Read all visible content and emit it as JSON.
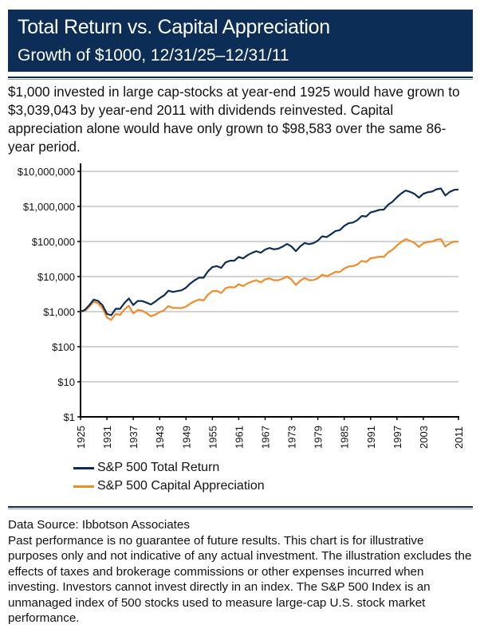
{
  "header": {
    "title": "Total Return vs. Capital Appreciation",
    "subtitle": "Growth of $1000, 12/31/25–12/31/11"
  },
  "intro": "$1,000 invested in large cap-stocks at year-end 1925 would have grown to $3,039,043 by year-end 2011 with dividends reinvested. Capital appreciation alone would have only grown to $98,583 over the same 86-year period.",
  "colors": {
    "header": "#0c2d55",
    "total_return": "#0c2d55",
    "capital_appreciation": "#f28c28",
    "grid": "#c4c4c4"
  },
  "chart_data": {
    "type": "line",
    "y_scale": "log",
    "ylim": [
      1,
      10000000
    ],
    "xlim": [
      1925,
      2011
    ],
    "grid": "horizontal",
    "legend_position": "bottom-left",
    "y_ticks": [
      1,
      10,
      100,
      1000,
      10000,
      100000,
      1000000,
      10000000
    ],
    "y_tick_labels": [
      "$1",
      "$10",
      "$100",
      "$1,000",
      "$10,000",
      "$100,000",
      "$1,000,000",
      "$10,000,000"
    ],
    "x_tick_labels": [
      "1925",
      "1931",
      "1937",
      "1943",
      "1949",
      "1955",
      "1961",
      "1967",
      "1973",
      "1979",
      "1985",
      "1991",
      "1997",
      "2003",
      "2011"
    ],
    "x_start": 1925,
    "series": [
      {
        "name": "S&P 500 Total Return",
        "values": [
          1000,
          1120,
          1530,
          2200,
          2020,
          1520,
          860,
          790,
          1210,
          1200,
          1770,
          2370,
          1540,
          2020,
          2010,
          1810,
          1600,
          1930,
          2420,
          2900,
          3960,
          3640,
          3850,
          4060,
          4830,
          6360,
          7890,
          9340,
          9240,
          14100,
          18600,
          19800,
          17700,
          25400,
          28400,
          28500,
          36200,
          33000,
          40600,
          47200,
          53100,
          47700,
          59100,
          65600,
          60000,
          62400,
          71400,
          84900,
          72400,
          53200,
          73000,
          90600,
          84100,
          89600,
          106100,
          140500,
          133600,
          162200,
          198700,
          211300,
          279100,
          330700,
          348000,
          406100,
          534500,
          517500,
          675600,
          727400,
          800100,
          810500,
          1113900,
          1370000,
          1828300,
          2350900,
          2845600,
          2586500,
          2279100,
          1775300,
          2284800,
          2533400,
          2657600,
          3077300,
          3246400,
          2045300,
          2586500,
          2976100,
          3039043
        ]
      },
      {
        "name": "S&P 500 Capital Appreciation",
        "values": [
          1000,
          1060,
          1380,
          1930,
          1720,
          1250,
          680,
          580,
          860,
          810,
          1160,
          1470,
          890,
          1110,
          1070,
          910,
          740,
          820,
          970,
          1090,
          1440,
          1270,
          1270,
          1260,
          1400,
          1700,
          1980,
          2220,
          2080,
          3030,
          3810,
          3920,
          3380,
          4660,
          5040,
          4880,
          6020,
          5330,
          6380,
          7220,
          7890,
          6820,
          8280,
          8900,
          7880,
          7880,
          8740,
          10070,
          8200,
          5780,
          7630,
          9090,
          7880,
          7960,
          8910,
          11360,
          10230,
          11710,
          13620,
          13450,
          16980,
          19460,
          19870,
          22180,
          28060,
          26250,
          33310,
          34820,
          37060,
          36300,
          48490,
          58400,
          76810,
          97450,
          116690,
          104720,
          91020,
          70170,
          88670,
          96820,
          99620,
          113240,
          116390,
          71700,
          88160,
          99560,
          98583
        ]
      }
    ]
  },
  "footer": {
    "source": "Data Source: Ibbotson Associates",
    "disclaimer": "Past performance is no guarantee of future results. This chart is for illustrative purposes only and not indicative of any actual investment. The illustration excludes the effects of taxes and brokerage commissions or other expenses incurred when investing. Investors cannot invest directly in an index. The S&P 500 Index is an unmanaged index of 500 stocks used to measure large-cap U.S. stock market performance."
  }
}
